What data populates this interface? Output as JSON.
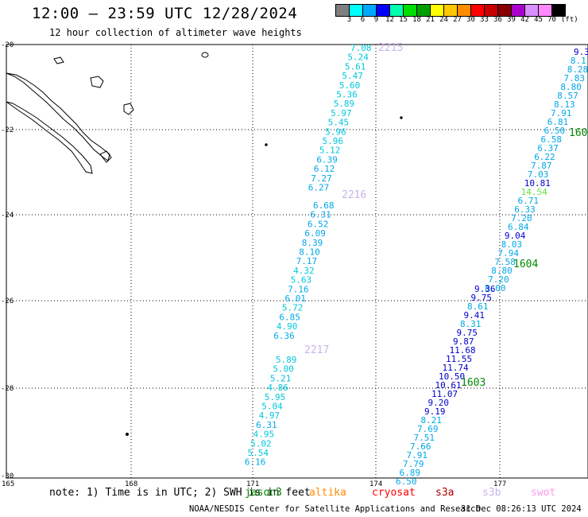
{
  "header": {
    "title": "12:00 – 23:59 UTC 12/28/2024",
    "subtitle": "12 hour collection of altimeter wave heights"
  },
  "color_scale": {
    "colors": [
      "#7f7f7f",
      "#00ffff",
      "#00a8ff",
      "#0000ff",
      "#00ffb0",
      "#00dd00",
      "#00a000",
      "#ffff00",
      "#ffc800",
      "#ff8c00",
      "#ff0000",
      "#c80000",
      "#880000",
      "#aa00cc",
      "#d890ff",
      "#ff88ff",
      "#000000"
    ],
    "labels": [
      "3",
      "6",
      "9",
      "12",
      "15",
      "18",
      "21",
      "24",
      "27",
      "30",
      "33",
      "36",
      "39",
      "42",
      "45",
      "70"
    ],
    "unit": "(ft)"
  },
  "axes": {
    "lat_labels": [
      "-20",
      "-22",
      "-24",
      "-26",
      "-28",
      "-30"
    ],
    "lon_labels": [
      "165",
      "168",
      "171",
      "174",
      "177"
    ]
  },
  "tracks": [
    {
      "label": "2215",
      "label_color": "#c8b4ec",
      "points": [
        {
          "v": "7.08",
          "c": "#00c8dc"
        },
        {
          "v": "5.24",
          "c": "#00c8dc"
        },
        {
          "v": "5.61",
          "c": "#00c8dc"
        },
        {
          "v": "5.47",
          "c": "#00c8dc"
        },
        {
          "v": "5.60",
          "c": "#00c8dc"
        },
        {
          "v": "5.36",
          "c": "#00c8dc"
        },
        {
          "v": "5.89",
          "c": "#00c8dc"
        },
        {
          "v": "5.97",
          "c": "#00c8dc"
        },
        {
          "v": "5.45",
          "c": "#00c8dc"
        },
        {
          "v": "5.96",
          "c": "#00c8dc"
        },
        {
          "v": "5.96",
          "c": "#00c8dc"
        },
        {
          "v": "5.12",
          "c": "#00c8dc"
        },
        {
          "v": "6.39",
          "c": "#00a8e8"
        },
        {
          "v": "6.12",
          "c": "#00a8e8"
        },
        {
          "v": "7.27",
          "c": "#00a8e8"
        },
        {
          "v": "6.27",
          "c": "#00a8e8"
        }
      ]
    },
    {
      "label": "2216",
      "label_color": "#c8b4ec",
      "points": [
        {
          "v": "6.68",
          "c": "#00a8e8"
        },
        {
          "v": "6.31",
          "c": "#00a8e8"
        },
        {
          "v": "6.52",
          "c": "#00a8e8"
        },
        {
          "v": "6.09",
          "c": "#00a8e8"
        },
        {
          "v": "8.39",
          "c": "#00a8e8"
        },
        {
          "v": "8.10",
          "c": "#00a8e8"
        },
        {
          "v": "7.17",
          "c": "#00a8e8"
        },
        {
          "v": "4.32",
          "c": "#00c8dc"
        },
        {
          "v": "5.63",
          "c": "#00c8dc"
        },
        {
          "v": "7.16",
          "c": "#00a8e8"
        },
        {
          "v": "6.01",
          "c": "#00a8e8"
        },
        {
          "v": "5.72",
          "c": "#00c8dc"
        },
        {
          "v": "6.85",
          "c": "#00a8e8"
        },
        {
          "v": "4.90",
          "c": "#00c8dc"
        },
        {
          "v": "6.36",
          "c": "#00a8e8"
        }
      ]
    },
    {
      "label": "2217",
      "label_color": "#c8b4ec",
      "points": [
        {
          "v": "5.89",
          "c": "#00c8dc"
        },
        {
          "v": "5.00",
          "c": "#00c8dc"
        },
        {
          "v": "5.21",
          "c": "#00c8dc"
        },
        {
          "v": "4.86",
          "c": "#00c8dc"
        },
        {
          "v": "5.95",
          "c": "#00c8dc"
        },
        {
          "v": "5.04",
          "c": "#00c8dc"
        },
        {
          "v": "4.97",
          "c": "#00c8dc"
        },
        {
          "v": "6.31",
          "c": "#00a8e8"
        },
        {
          "v": "4.95",
          "c": "#00c8dc"
        },
        {
          "v": "5.02",
          "c": "#00c8dc"
        },
        {
          "v": "5.54",
          "c": "#00c8dc"
        },
        {
          "v": "6.16",
          "c": "#00a8e8"
        }
      ]
    },
    {
      "label": "1604",
      "label_color": "#008800",
      "points": [
        {
          "v": "9.3",
          "c": "#0000cc"
        },
        {
          "v": "8.1",
          "c": "#00a8e8"
        },
        {
          "v": "8.28",
          "c": "#00a8e8"
        },
        {
          "v": "7.83",
          "c": "#00a8e8"
        },
        {
          "v": "8.80",
          "c": "#00a8e8"
        },
        {
          "v": "8.57",
          "c": "#00a8e8"
        },
        {
          "v": "8.13",
          "c": "#00a8e8"
        },
        {
          "v": "7.91",
          "c": "#00a8e8"
        },
        {
          "v": "6.81",
          "c": "#00a8e8"
        },
        {
          "v": "6.50",
          "c": "#00a8e8"
        },
        {
          "v": "6.58",
          "c": "#00a8e8"
        },
        {
          "v": "6.37",
          "c": "#00a8e8"
        },
        {
          "v": "6.22",
          "c": "#00a8e8"
        },
        {
          "v": "7.87",
          "c": "#00a8e8"
        },
        {
          "v": "7.03",
          "c": "#00a8e8"
        },
        {
          "v": "10.81",
          "c": "#0000cc"
        },
        {
          "v": "14.54",
          "c": "#66e040"
        },
        {
          "v": "6.71",
          "c": "#00a8e8"
        },
        {
          "v": "6.33",
          "c": "#00a8e8"
        },
        {
          "v": "7.20",
          "c": "#00a8e8"
        },
        {
          "v": "6.84",
          "c": "#00a8e8"
        },
        {
          "v": "9.04",
          "c": "#0000cc"
        },
        {
          "v": "8.03",
          "c": "#00a8e8"
        },
        {
          "v": "7.94",
          "c": "#00a8e8"
        },
        {
          "v": "7.58",
          "c": "#00a8e8"
        },
        {
          "v": "8.80",
          "c": "#00a8e8"
        },
        {
          "v": "7.20",
          "c": "#00a8e8"
        },
        {
          "v": "8.00",
          "c": "#00a8e8"
        }
      ]
    },
    {
      "label": "1603",
      "label_color": "#008800",
      "points": [
        {
          "v": "9.36",
          "c": "#0000cc"
        },
        {
          "v": "9.75",
          "c": "#0000cc"
        },
        {
          "v": "8.61",
          "c": "#00a8e8"
        },
        {
          "v": "9.41",
          "c": "#0000cc"
        },
        {
          "v": "8.31",
          "c": "#00a8e8"
        },
        {
          "v": "9.75",
          "c": "#0000cc"
        },
        {
          "v": "9.87",
          "c": "#0000cc"
        },
        {
          "v": "11.68",
          "c": "#0000cc"
        },
        {
          "v": "11.55",
          "c": "#0000cc"
        },
        {
          "v": "11.74",
          "c": "#0000cc"
        },
        {
          "v": "10.50",
          "c": "#0000cc"
        },
        {
          "v": "10.61",
          "c": "#0000cc"
        },
        {
          "v": "11.07",
          "c": "#0000cc"
        },
        {
          "v": "9.20",
          "c": "#0000cc"
        },
        {
          "v": "9.19",
          "c": "#0000cc"
        },
        {
          "v": "8.21",
          "c": "#00a8e8"
        },
        {
          "v": "7.69",
          "c": "#00a8e8"
        },
        {
          "v": "7.51",
          "c": "#00a8e8"
        },
        {
          "v": "7.66",
          "c": "#00a8e8"
        },
        {
          "v": "7.91",
          "c": "#00a8e8"
        },
        {
          "v": "7.79",
          "c": "#00a8e8"
        },
        {
          "v": "6.89",
          "c": "#00a8e8"
        },
        {
          "v": "6.50",
          "c": "#00a8e8"
        }
      ]
    }
  ],
  "extra_labels": [
    {
      "text": "160",
      "color": "#008800"
    }
  ],
  "footer": {
    "note": "note: 1) Time is in UTC; 2) SWH is in feet",
    "satellites": [
      {
        "name": "jason3",
        "color": "#008800"
      },
      {
        "name": "altika",
        "color": "#ff8c00"
      },
      {
        "name": "cryosat",
        "color": "#ff0000"
      },
      {
        "name": "s3a",
        "color": "#aa0000"
      },
      {
        "name": "s3b",
        "color": "#c8b4ec"
      },
      {
        "name": "swot",
        "color": "#ff99ee"
      }
    ],
    "credit": "NOAA/NESDIS Center for Satellite Applications and Research",
    "generated": "31 Dec 08:26:13 UTC 2024"
  }
}
